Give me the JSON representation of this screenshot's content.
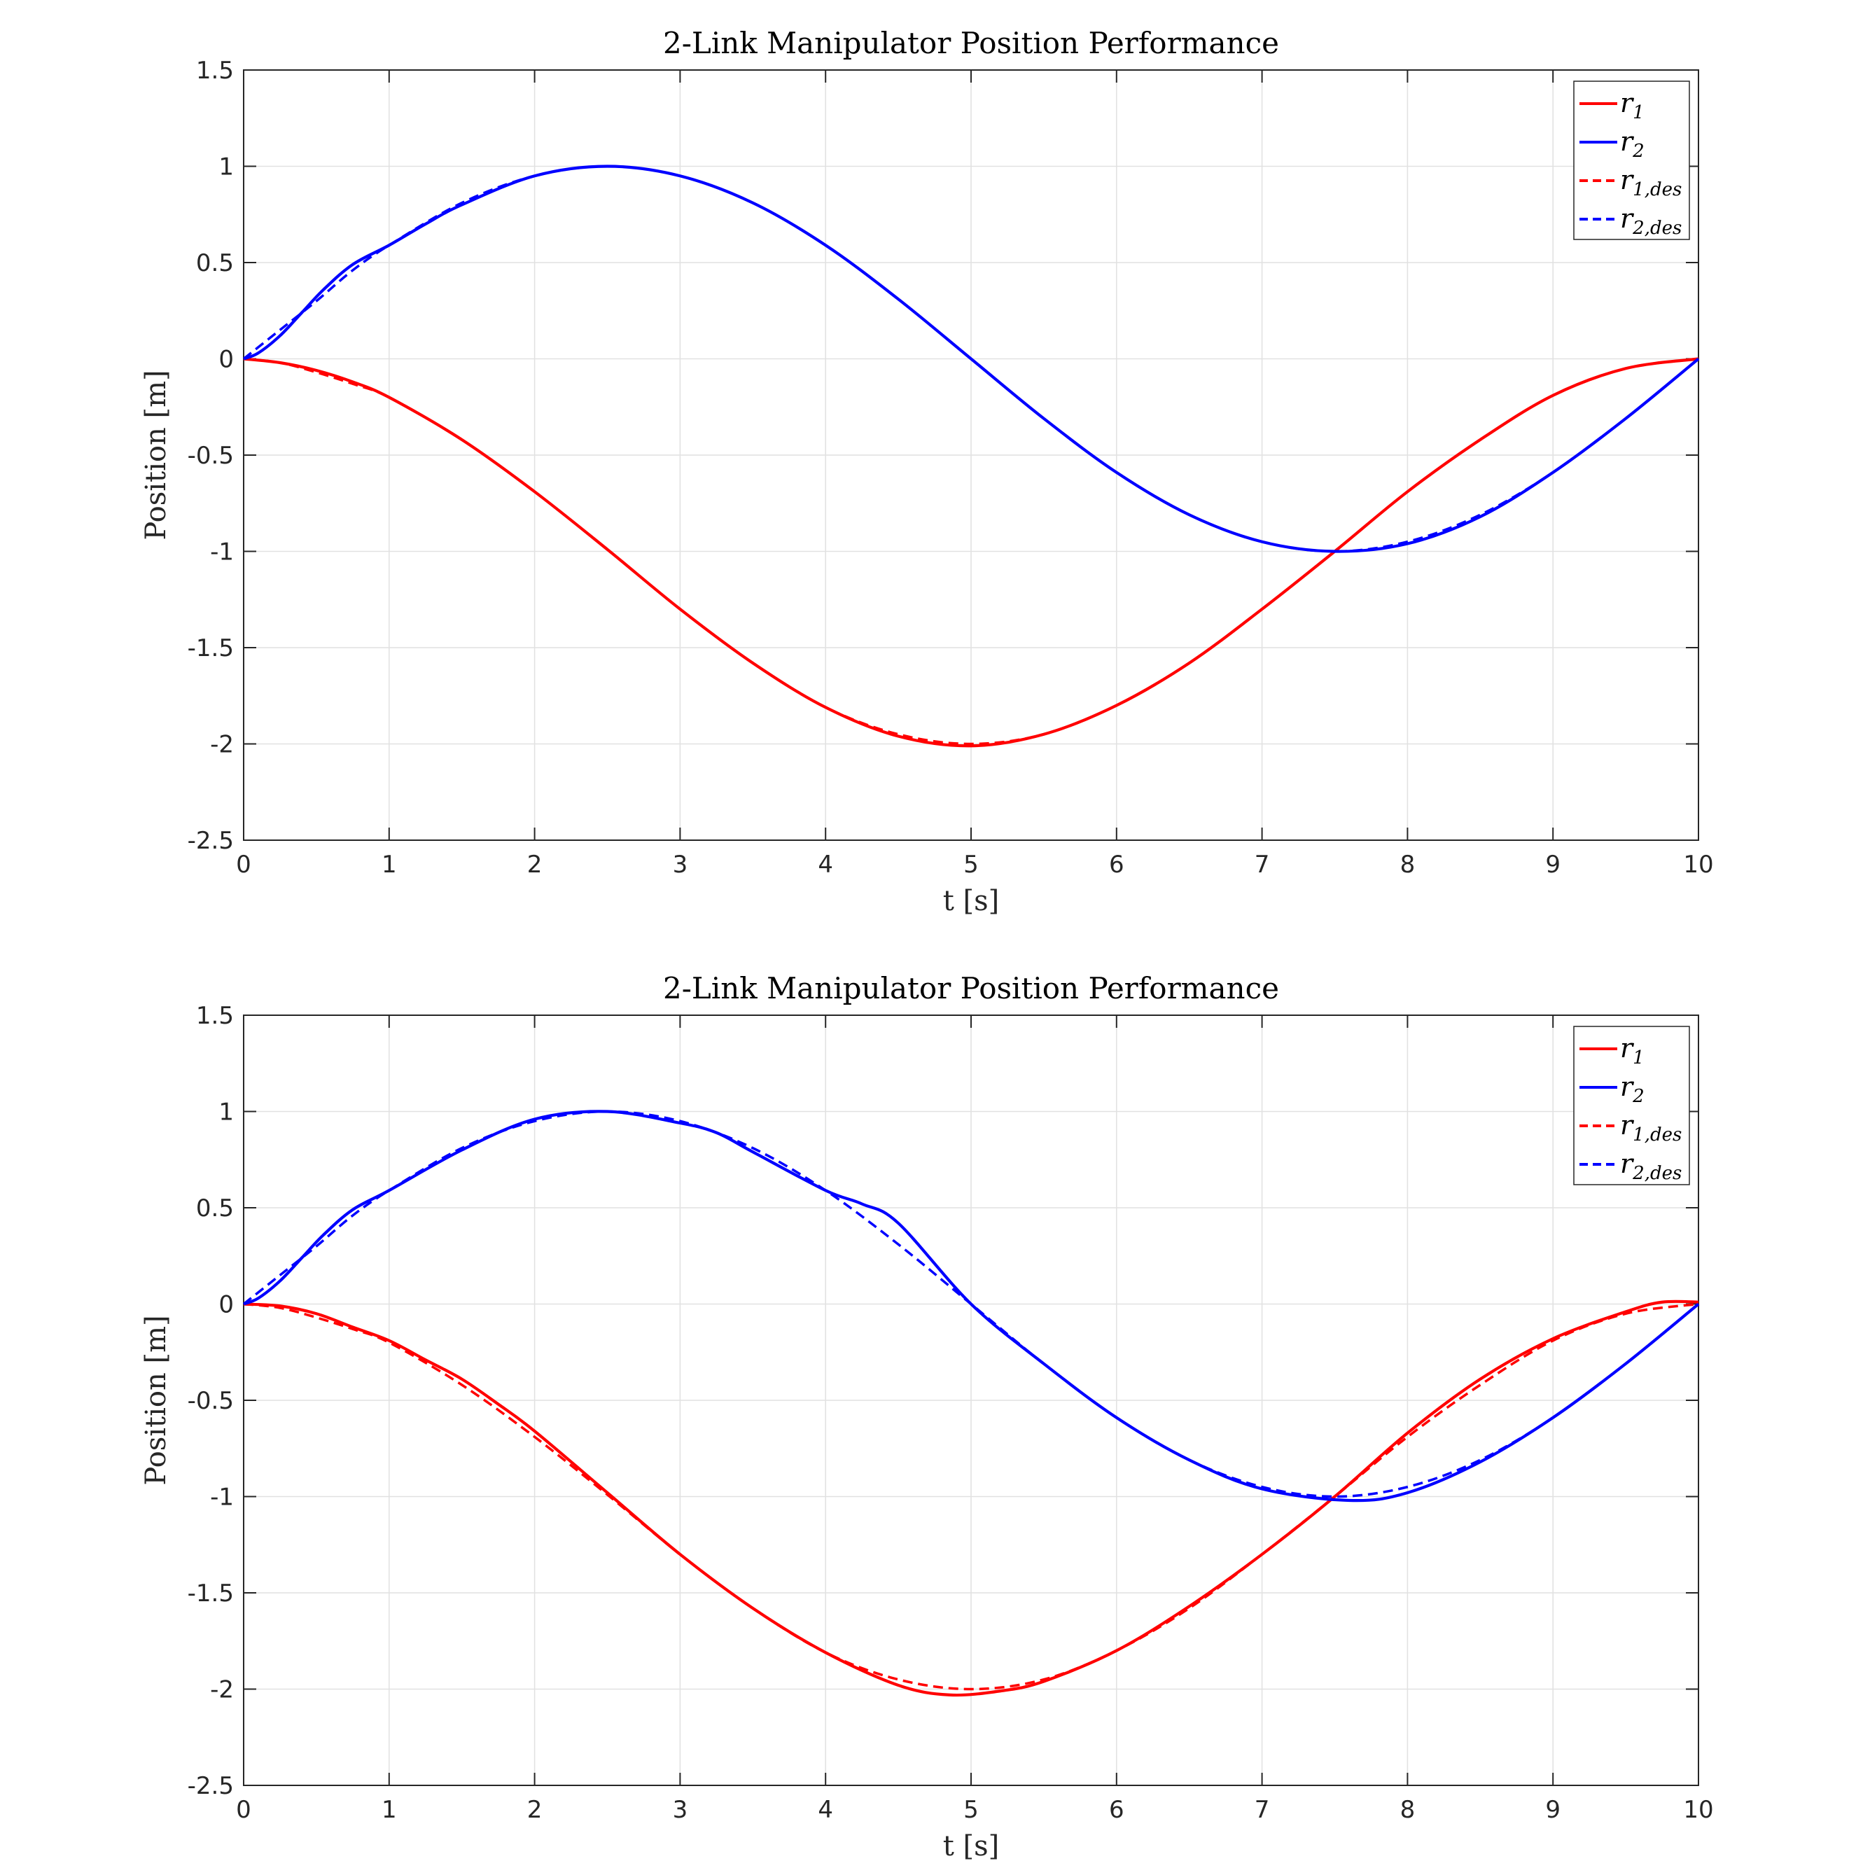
{
  "chart_data": [
    {
      "type": "line",
      "title": "2-Link Manipulator Position Performance",
      "xlabel": "t [s]",
      "ylabel": "Position [m]",
      "xlim": [
        0,
        10
      ],
      "ylim": [
        -2.5,
        1.5
      ],
      "xticks": [
        "0",
        "1",
        "2",
        "3",
        "4",
        "5",
        "6",
        "7",
        "8",
        "9",
        "10"
      ],
      "yticks": [
        "1.5",
        "1",
        "0.5",
        "0",
        "-0.5",
        "-1",
        "-1.5",
        "-2",
        "-2.5"
      ],
      "grid": true,
      "legend_position": "top-right",
      "series": [
        {
          "name": "r1",
          "label_main": "r",
          "label_sub": "1",
          "color": "#ff0000",
          "style": "solid",
          "x": [
            0,
            0.25,
            0.5,
            0.75,
            1,
            1.5,
            2,
            2.5,
            3,
            3.5,
            4,
            4.5,
            5,
            5.5,
            6,
            6.5,
            7,
            7.5,
            8,
            8.5,
            9,
            9.5,
            10
          ],
          "y": [
            0,
            -0.02,
            -0.06,
            -0.12,
            -0.2,
            -0.42,
            -0.69,
            -0.99,
            -1.3,
            -1.58,
            -1.81,
            -1.96,
            -2.01,
            -1.95,
            -1.8,
            -1.58,
            -1.3,
            -1.0,
            -0.69,
            -0.42,
            -0.19,
            -0.05,
            0
          ]
        },
        {
          "name": "r2",
          "label_main": "r",
          "label_sub": "2",
          "color": "#0000ff",
          "style": "solid",
          "x": [
            0,
            0.1,
            0.25,
            0.4,
            0.55,
            0.75,
            1,
            1.25,
            1.5,
            2,
            2.5,
            3,
            3.5,
            4,
            4.5,
            5,
            5.5,
            6,
            6.5,
            7,
            7.5,
            8,
            8.5,
            9,
            9.5,
            10
          ],
          "y": [
            0,
            0.03,
            0.12,
            0.24,
            0.36,
            0.49,
            0.59,
            0.7,
            0.8,
            0.95,
            1.0,
            0.95,
            0.81,
            0.59,
            0.31,
            0.0,
            -0.31,
            -0.59,
            -0.81,
            -0.95,
            -1.0,
            -0.96,
            -0.82,
            -0.59,
            -0.31,
            0
          ]
        },
        {
          "name": "r1,des",
          "label_main": "r",
          "label_sub": "1,des",
          "color": "#ff0000",
          "style": "dashed",
          "x": [
            0,
            0.25,
            0.5,
            0.75,
            1,
            1.5,
            2,
            2.5,
            3,
            3.5,
            4,
            4.5,
            5,
            5.5,
            6,
            6.5,
            7,
            7.5,
            8,
            8.5,
            9,
            9.5,
            10
          ],
          "y": [
            0,
            -0.02,
            -0.07,
            -0.13,
            -0.2,
            -0.42,
            -0.69,
            -0.99,
            -1.3,
            -1.58,
            -1.81,
            -1.95,
            -2.0,
            -1.95,
            -1.8,
            -1.58,
            -1.3,
            -1.0,
            -0.69,
            -0.42,
            -0.19,
            -0.05,
            0
          ]
        },
        {
          "name": "r2,des",
          "label_main": "r",
          "label_sub": "2,des",
          "color": "#0000ff",
          "style": "dashed",
          "x": [
            0,
            0.25,
            0.5,
            0.75,
            1,
            1.5,
            2,
            2.5,
            3,
            3.5,
            4,
            4.5,
            5,
            5.5,
            6,
            6.5,
            7,
            7.5,
            8,
            8.5,
            9,
            9.5,
            10
          ],
          "y": [
            0,
            0.15,
            0.3,
            0.46,
            0.59,
            0.81,
            0.95,
            1.0,
            0.95,
            0.81,
            0.59,
            0.31,
            0.0,
            -0.31,
            -0.59,
            -0.81,
            -0.95,
            -1.0,
            -0.95,
            -0.81,
            -0.59,
            -0.31,
            0
          ]
        }
      ]
    },
    {
      "type": "line",
      "title": "2-Link Manipulator Position Performance",
      "xlabel": "t [s]",
      "ylabel": "Position [m]",
      "xlim": [
        0,
        10
      ],
      "ylim": [
        -2.5,
        1.5
      ],
      "xticks": [
        "0",
        "1",
        "2",
        "3",
        "4",
        "5",
        "6",
        "7",
        "8",
        "9",
        "10"
      ],
      "yticks": [
        "1.5",
        "1",
        "0.5",
        "0",
        "-0.5",
        "-1",
        "-1.5",
        "-2",
        "-2.5"
      ],
      "grid": true,
      "legend_position": "top-right",
      "series": [
        {
          "name": "r1",
          "label_main": "r",
          "label_sub": "1",
          "color": "#ff0000",
          "style": "solid",
          "x": [
            0,
            0.25,
            0.5,
            0.75,
            1,
            1.25,
            1.5,
            1.75,
            2,
            2.5,
            3,
            3.5,
            4,
            4.5,
            4.85,
            5.2,
            5.5,
            6,
            6.5,
            7,
            7.5,
            8,
            8.5,
            9,
            9.5,
            9.75,
            10
          ],
          "y": [
            0,
            -0.01,
            -0.05,
            -0.12,
            -0.19,
            -0.29,
            -0.39,
            -0.52,
            -0.66,
            -0.98,
            -1.3,
            -1.58,
            -1.81,
            -1.98,
            -2.03,
            -2.01,
            -1.96,
            -1.8,
            -1.57,
            -1.3,
            -1.0,
            -0.67,
            -0.39,
            -0.18,
            -0.04,
            0.01,
            0.01
          ]
        },
        {
          "name": "r2",
          "label_main": "r",
          "label_sub": "2",
          "color": "#0000ff",
          "style": "solid",
          "x": [
            0,
            0.1,
            0.25,
            0.4,
            0.55,
            0.75,
            1,
            1.5,
            2,
            2.5,
            3,
            3.25,
            3.5,
            4,
            4.25,
            4.5,
            5,
            5.5,
            6,
            6.5,
            7,
            7.6,
            8,
            8.5,
            9,
            9.5,
            10
          ],
          "y": [
            0,
            0.03,
            0.12,
            0.24,
            0.36,
            0.49,
            0.59,
            0.8,
            0.96,
            1.0,
            0.94,
            0.89,
            0.79,
            0.59,
            0.52,
            0.42,
            0.0,
            -0.31,
            -0.59,
            -0.81,
            -0.96,
            -1.02,
            -0.98,
            -0.82,
            -0.59,
            -0.31,
            0
          ]
        },
        {
          "name": "r1,des",
          "label_main": "r",
          "label_sub": "1,des",
          "color": "#ff0000",
          "style": "dashed",
          "x": [
            0,
            0.25,
            0.5,
            0.75,
            1,
            1.5,
            2,
            2.5,
            3,
            3.5,
            4,
            4.5,
            5,
            5.5,
            6,
            6.5,
            7,
            7.5,
            8,
            8.5,
            9,
            9.5,
            10
          ],
          "y": [
            0,
            -0.02,
            -0.07,
            -0.13,
            -0.2,
            -0.42,
            -0.69,
            -0.99,
            -1.3,
            -1.58,
            -1.81,
            -1.95,
            -2.0,
            -1.95,
            -1.8,
            -1.58,
            -1.3,
            -1.0,
            -0.69,
            -0.42,
            -0.19,
            -0.05,
            0
          ]
        },
        {
          "name": "r2,des",
          "label_main": "r",
          "label_sub": "2,des",
          "color": "#0000ff",
          "style": "dashed",
          "x": [
            0,
            0.25,
            0.5,
            0.75,
            1,
            1.5,
            2,
            2.5,
            3,
            3.5,
            4,
            4.5,
            5,
            5.5,
            6,
            6.5,
            7,
            7.5,
            8,
            8.5,
            9,
            9.5,
            10
          ],
          "y": [
            0,
            0.15,
            0.3,
            0.46,
            0.59,
            0.81,
            0.95,
            1.0,
            0.95,
            0.81,
            0.59,
            0.31,
            0.0,
            -0.31,
            -0.59,
            -0.81,
            -0.95,
            -1.0,
            -0.95,
            -0.81,
            -0.59,
            -0.31,
            0
          ]
        }
      ]
    }
  ]
}
